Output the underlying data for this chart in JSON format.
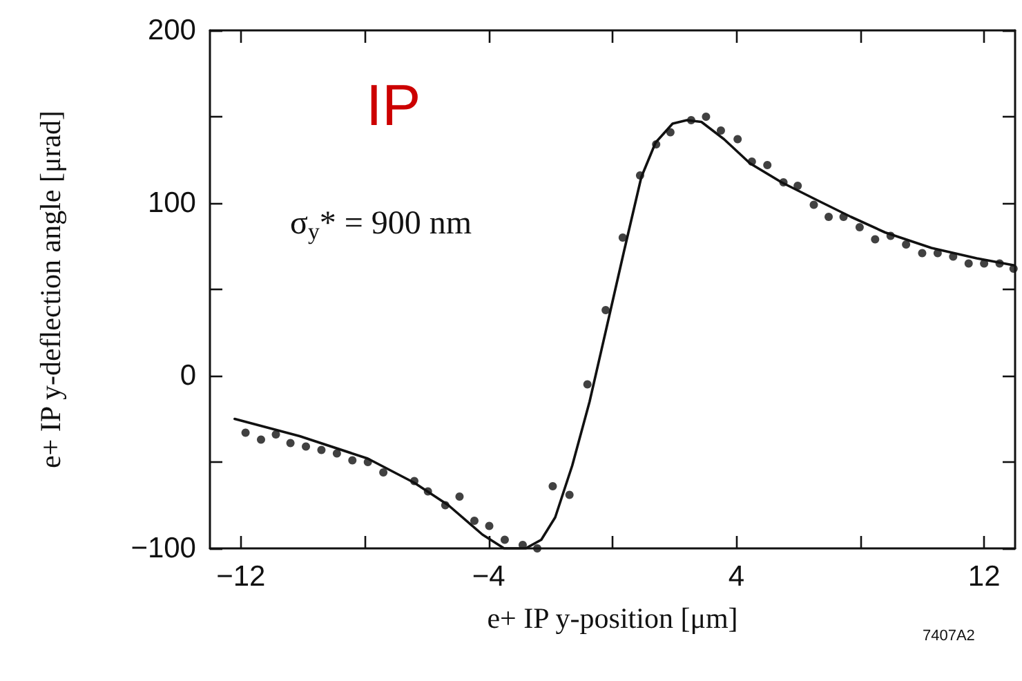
{
  "chart_data": {
    "type": "scatter",
    "xlabel": "e+ IP y-position [μm]",
    "ylabel": "e+ IP y-deflection angle [μrad]",
    "annotations": [
      "IP",
      "σ$_{y}$* = 900 nm",
      "7407A2"
    ],
    "xlim": [
      -13,
      13
    ],
    "ylim": [
      -100,
      200
    ],
    "xticks": [
      {
        "value": -12,
        "label": "−12"
      },
      {
        "value": -8,
        "label": null
      },
      {
        "value": -4,
        "label": "−4"
      },
      {
        "value": 0,
        "label": null
      },
      {
        "value": 4,
        "label": "4"
      },
      {
        "value": 8,
        "label": null
      },
      {
        "value": 12,
        "label": "12"
      }
    ],
    "yticks": [
      {
        "value": -100,
        "label": "−100"
      },
      {
        "value": -50,
        "label": null
      },
      0,
      {
        "value": 50,
        "label": null
      },
      100,
      {
        "value": 150,
        "label": null
      },
      200
    ],
    "series": [
      {
        "marker": "circle",
        "color": "#111111",
        "x": [
          -11.85,
          -11.35,
          -10.87,
          -10.4,
          -9.9,
          -9.4,
          -8.9,
          -8.4,
          -7.9,
          -7.4,
          -6.4,
          -5.96,
          -5.4,
          -4.94,
          -4.46,
          -3.98,
          -3.48,
          -2.9,
          -2.43,
          -1.93,
          -1.39,
          -0.81,
          -0.22,
          0.33,
          0.89,
          1.41,
          1.87,
          2.54,
          3.02,
          3.5,
          4.04,
          4.5,
          5.0,
          5.52,
          5.98,
          6.5,
          6.98,
          7.46,
          7.98,
          8.48,
          8.98,
          9.48,
          10.0,
          10.5,
          11.0,
          11.5,
          12.0,
          12.5,
          12.95
        ],
        "values": [
          -33,
          -37,
          -34,
          -39,
          -41,
          -43,
          -45,
          -49,
          -50,
          -56,
          -61,
          -67,
          -75,
          -70,
          -84,
          -87,
          -95,
          -98,
          -100,
          -64,
          -69,
          -5,
          38,
          80,
          116,
          134,
          141,
          148,
          150,
          142,
          137,
          124,
          122,
          112,
          110,
          99,
          92,
          92,
          86,
          79,
          81,
          76,
          71,
          71,
          69,
          65,
          65,
          65,
          62
        ]
      },
      {
        "type": "line",
        "marker": "none",
        "line_style": "solid",
        "color": "#111111",
        "x": [
          -12.2,
          -10.1,
          -7.9,
          -6.4,
          -5.3,
          -4.2,
          -3.5,
          -2.8,
          -2.3,
          -1.85,
          -1.3,
          -0.74,
          -0.19,
          0.37,
          0.93,
          1.39,
          1.94,
          2.4,
          2.87,
          3.6,
          4.44,
          5.46,
          6.57,
          7.7,
          8.8,
          10.3,
          11.76,
          12.95
        ],
        "values": [
          -25,
          -35,
          -48,
          -62,
          -75,
          -92,
          -100,
          -100,
          -95,
          -82,
          -52,
          -15,
          28,
          72,
          115,
          135,
          146,
          148,
          147,
          137,
          123,
          112,
          102,
          92,
          83,
          74,
          68,
          64
        ]
      }
    ]
  }
}
